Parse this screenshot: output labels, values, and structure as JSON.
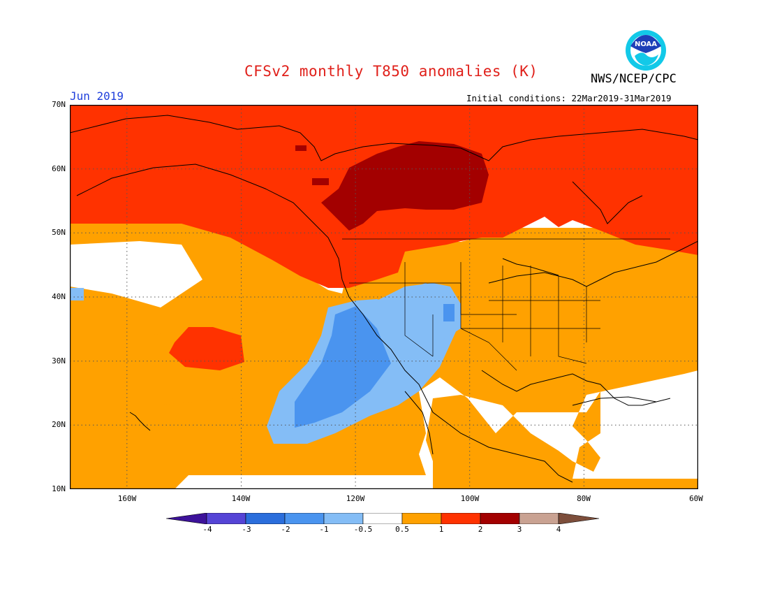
{
  "header": {
    "title": "CFSv2 monthly T850 anomalies (K)",
    "agency": "NWS/NCEP/CPC",
    "valid_month": "Jun 2019",
    "initial_conditions": "Initial conditions: 22Mar2019-31Mar2019",
    "logo_text": "NOAA"
  },
  "map": {
    "lat_labels": [
      "70N",
      "60N",
      "50N",
      "40N",
      "30N",
      "20N",
      "10N"
    ],
    "lon_labels": [
      "160W",
      "140W",
      "120W",
      "100W",
      "80W",
      "60W"
    ],
    "extent": {
      "lon_min": -171,
      "lon_max": -60,
      "lat_min": 10,
      "lat_max": 70
    }
  },
  "colorbar": {
    "labels": [
      "-4",
      "-3",
      "-2",
      "-1",
      "-0.5",
      "0.5",
      "1",
      "2",
      "3",
      "4"
    ],
    "colors": [
      "#3d129a",
      "#5544d6",
      "#2b6edc",
      "#4a94ef",
      "#84bdf6",
      "#ffffff",
      "#ffa100",
      "#ff3200",
      "#a30000",
      "#c9a292",
      "#7d4e3b"
    ]
  }
}
